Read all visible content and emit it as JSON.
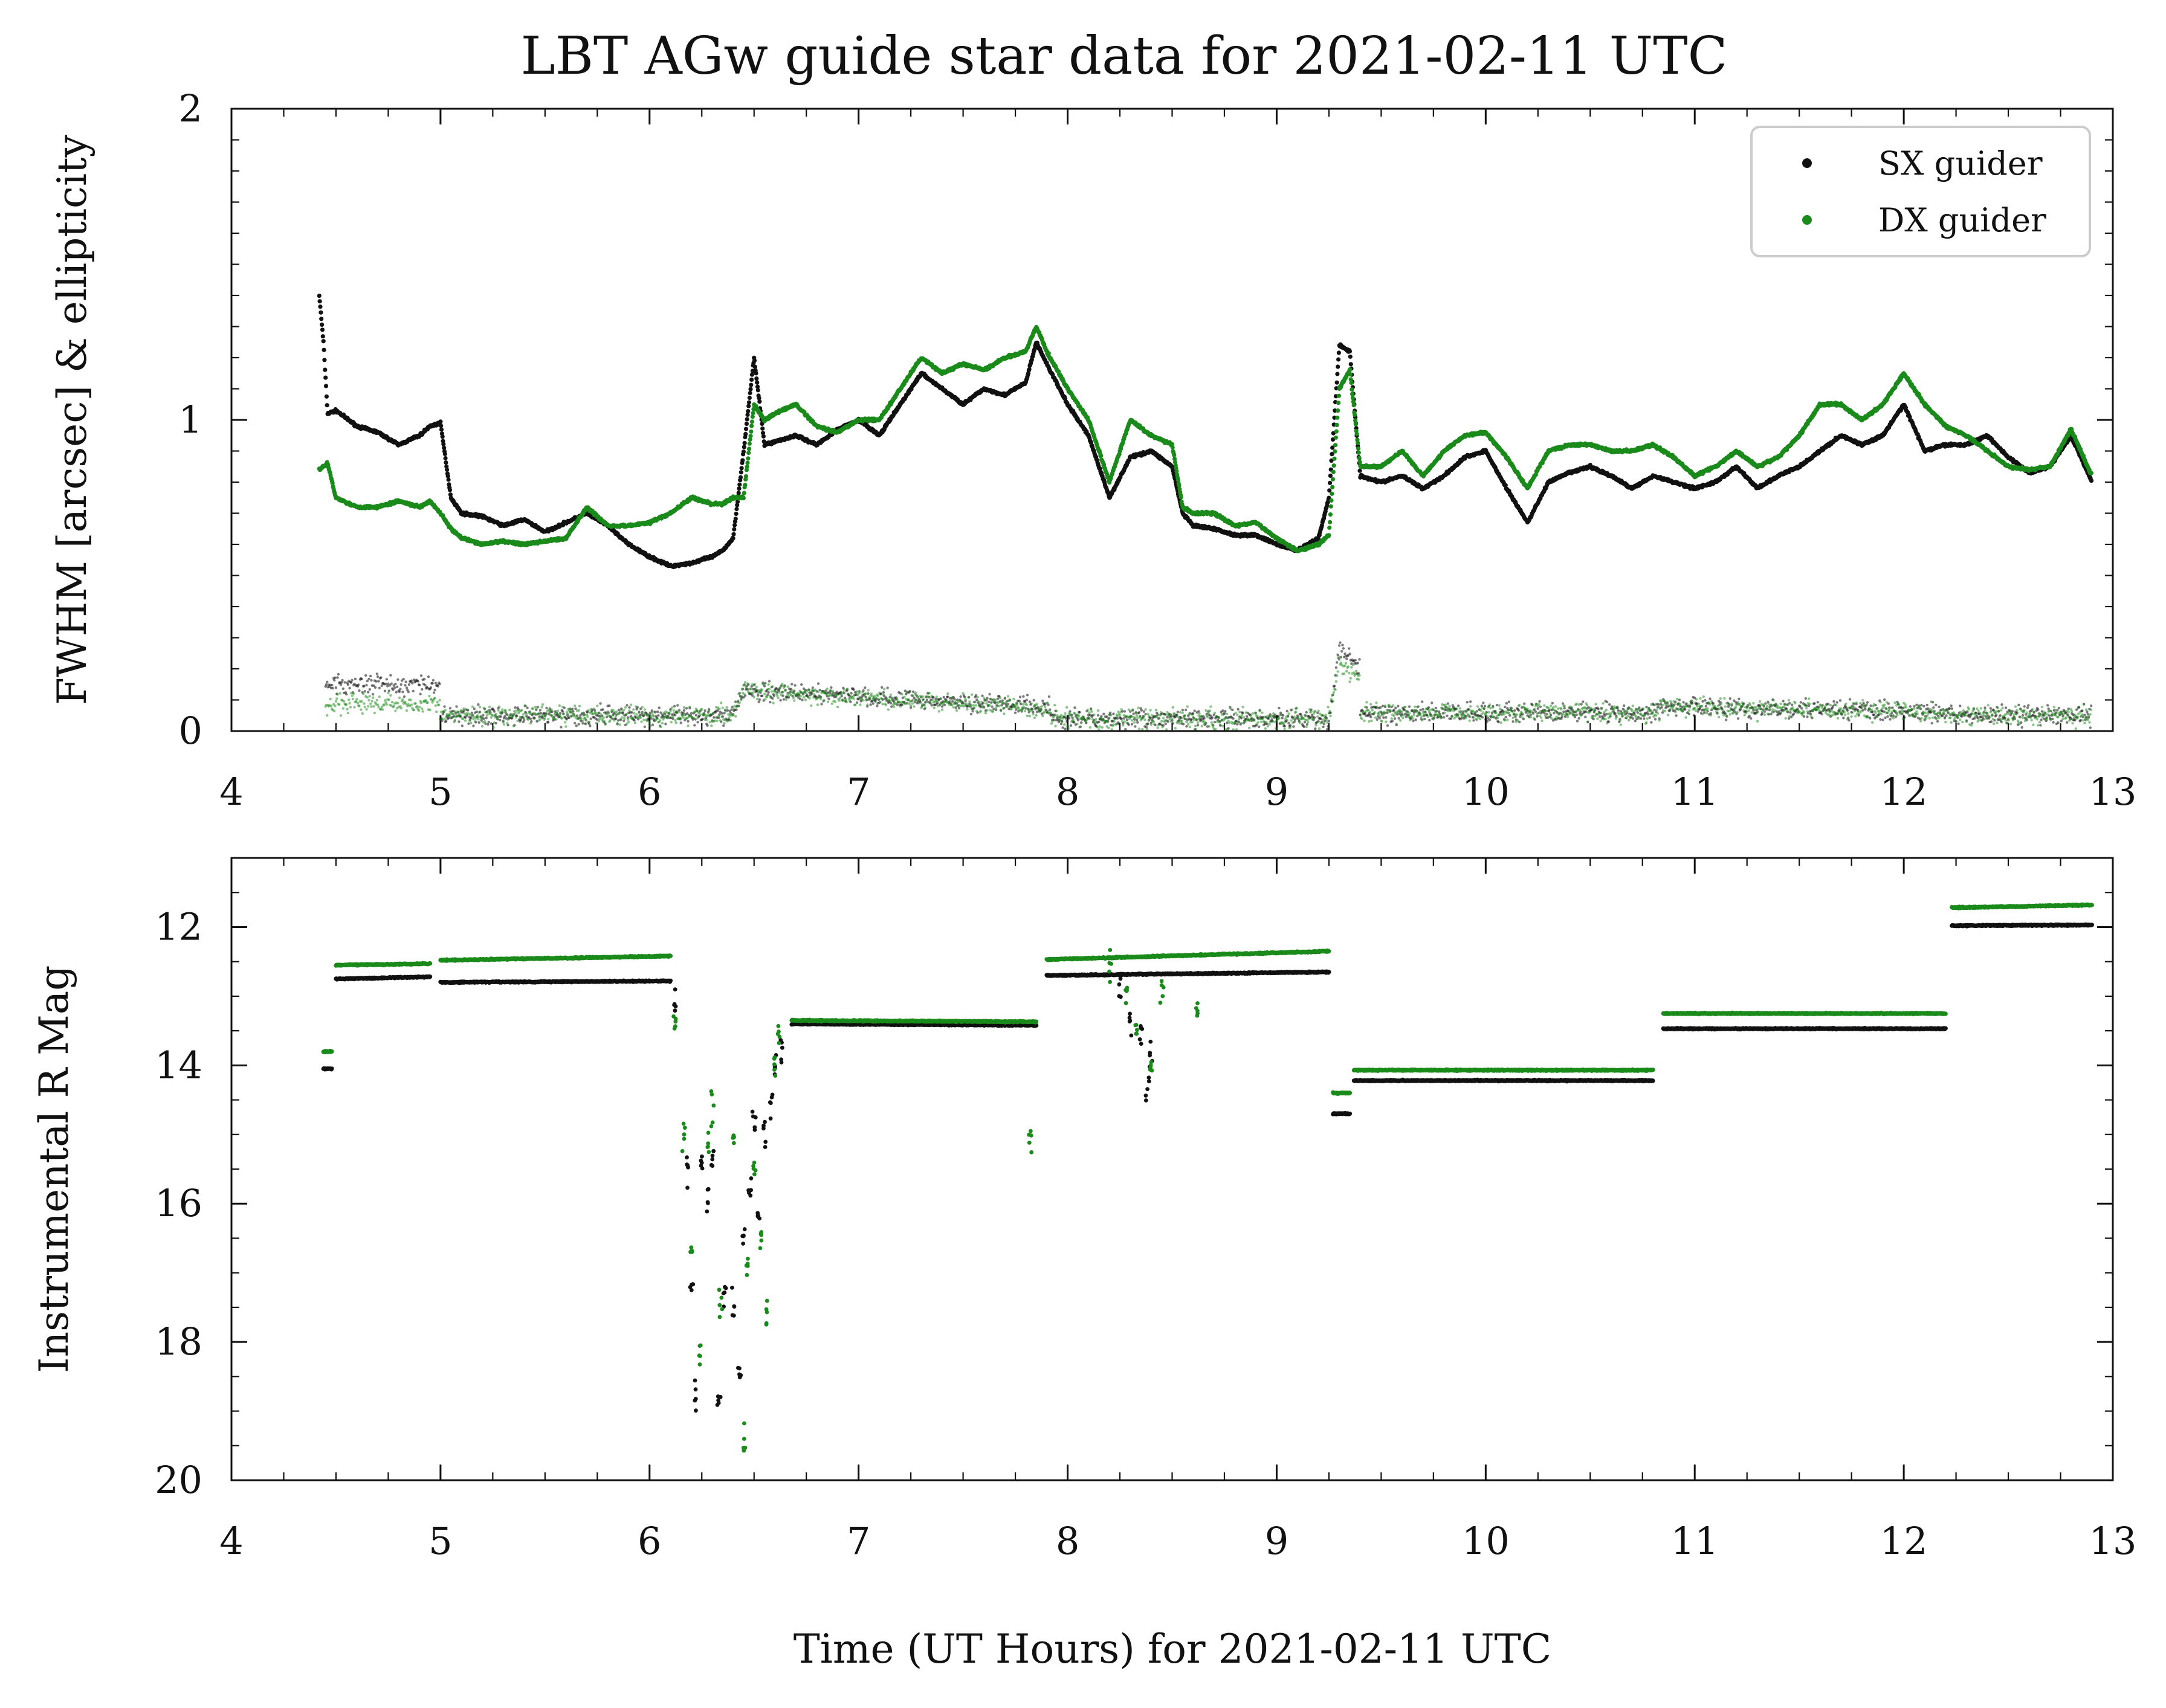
{
  "chart_data": [
    {
      "type": "scatter",
      "title": "LBT AGw guide star data for 2021-02-11 UTC",
      "ylabel": "FWHM [arcsec] & ellipticity",
      "xlabel": "",
      "xlim": [
        4,
        13
      ],
      "ylim": [
        0,
        2
      ],
      "x_ticks": [
        "4",
        "5",
        "6",
        "7",
        "8",
        "9",
        "10",
        "11",
        "12",
        "13"
      ],
      "y_ticks": [
        "0",
        "1",
        "2"
      ],
      "legend": {
        "placement": "top-right",
        "entries": [
          "SX guider",
          "DX guider"
        ]
      },
      "colors": {
        "sx": "#111111",
        "dx": "#1a8a1a"
      },
      "series": [
        {
          "name": "SX guider",
          "metric": "FWHM",
          "x": [
            4.42,
            4.44,
            4.46,
            4.5,
            4.6,
            4.7,
            4.8,
            4.9,
            4.95,
            5.0,
            5.05,
            5.1,
            5.2,
            5.3,
            5.4,
            5.5,
            5.6,
            5.7,
            5.8,
            5.9,
            6.0,
            6.1,
            6.2,
            6.3,
            6.35,
            6.4,
            6.45,
            6.5,
            6.55,
            6.6,
            6.7,
            6.8,
            6.9,
            7.0,
            7.1,
            7.2,
            7.3,
            7.4,
            7.5,
            7.6,
            7.7,
            7.8,
            7.85,
            7.9,
            8.0,
            8.1,
            8.2,
            8.3,
            8.4,
            8.5,
            8.55,
            8.6,
            8.7,
            8.8,
            8.9,
            9.0,
            9.1,
            9.2,
            9.25,
            9.3,
            9.35,
            9.4,
            9.5,
            9.6,
            9.7,
            9.8,
            9.9,
            10.0,
            10.1,
            10.2,
            10.3,
            10.4,
            10.5,
            10.6,
            10.7,
            10.8,
            10.9,
            11.0,
            11.1,
            11.2,
            11.3,
            11.4,
            11.5,
            11.6,
            11.7,
            11.8,
            11.9,
            12.0,
            12.1,
            12.2,
            12.3,
            12.4,
            12.5,
            12.6,
            12.7,
            12.8,
            12.9
          ],
          "y": [
            1.4,
            1.25,
            1.02,
            1.03,
            0.98,
            0.96,
            0.92,
            0.95,
            0.98,
            0.99,
            0.75,
            0.7,
            0.69,
            0.66,
            0.68,
            0.64,
            0.67,
            0.7,
            0.66,
            0.6,
            0.56,
            0.53,
            0.54,
            0.56,
            0.58,
            0.62,
            0.9,
            1.2,
            0.92,
            0.93,
            0.95,
            0.92,
            0.97,
            1.0,
            0.95,
            1.05,
            1.15,
            1.1,
            1.05,
            1.1,
            1.08,
            1.12,
            1.25,
            1.18,
            1.05,
            0.95,
            0.75,
            0.88,
            0.9,
            0.85,
            0.7,
            0.66,
            0.65,
            0.63,
            0.63,
            0.6,
            0.58,
            0.62,
            0.75,
            1.24,
            1.22,
            0.82,
            0.8,
            0.82,
            0.78,
            0.82,
            0.88,
            0.9,
            0.78,
            0.67,
            0.8,
            0.83,
            0.85,
            0.82,
            0.78,
            0.82,
            0.8,
            0.78,
            0.8,
            0.85,
            0.78,
            0.82,
            0.85,
            0.9,
            0.95,
            0.92,
            0.95,
            1.05,
            0.9,
            0.92,
            0.92,
            0.95,
            0.88,
            0.83,
            0.85,
            0.95,
            0.8
          ]
        },
        {
          "name": "DX guider",
          "metric": "FWHM",
          "x": [
            4.42,
            4.46,
            4.5,
            4.6,
            4.7,
            4.8,
            4.9,
            4.95,
            5.0,
            5.05,
            5.1,
            5.2,
            5.3,
            5.4,
            5.5,
            5.6,
            5.7,
            5.8,
            5.9,
            6.0,
            6.1,
            6.2,
            6.3,
            6.35,
            6.4,
            6.45,
            6.5,
            6.55,
            6.6,
            6.7,
            6.8,
            6.9,
            7.0,
            7.1,
            7.2,
            7.3,
            7.4,
            7.5,
            7.6,
            7.7,
            7.8,
            7.85,
            7.9,
            8.0,
            8.1,
            8.2,
            8.3,
            8.4,
            8.5,
            8.55,
            8.6,
            8.7,
            8.8,
            8.9,
            9.0,
            9.1,
            9.2,
            9.25,
            9.3,
            9.35,
            9.4,
            9.5,
            9.6,
            9.7,
            9.8,
            9.9,
            10.0,
            10.1,
            10.2,
            10.3,
            10.4,
            10.5,
            10.6,
            10.7,
            10.8,
            10.9,
            11.0,
            11.1,
            11.2,
            11.3,
            11.4,
            11.5,
            11.6,
            11.7,
            11.8,
            11.9,
            12.0,
            12.1,
            12.2,
            12.3,
            12.4,
            12.5,
            12.6,
            12.7,
            12.8,
            12.9
          ],
          "y": [
            0.84,
            0.86,
            0.75,
            0.72,
            0.72,
            0.74,
            0.72,
            0.74,
            0.7,
            0.65,
            0.62,
            0.6,
            0.61,
            0.6,
            0.61,
            0.62,
            0.72,
            0.66,
            0.66,
            0.67,
            0.7,
            0.75,
            0.73,
            0.73,
            0.75,
            0.75,
            1.05,
            1.0,
            1.02,
            1.05,
            0.98,
            0.96,
            1.0,
            1.0,
            1.1,
            1.2,
            1.15,
            1.18,
            1.16,
            1.2,
            1.22,
            1.3,
            1.22,
            1.1,
            1.0,
            0.8,
            1.0,
            0.95,
            0.92,
            0.72,
            0.7,
            0.7,
            0.66,
            0.67,
            0.62,
            0.58,
            0.6,
            0.63,
            1.1,
            1.16,
            0.85,
            0.85,
            0.9,
            0.82,
            0.9,
            0.95,
            0.96,
            0.88,
            0.78,
            0.9,
            0.92,
            0.92,
            0.9,
            0.9,
            0.92,
            0.88,
            0.82,
            0.85,
            0.9,
            0.85,
            0.88,
            0.95,
            1.05,
            1.05,
            1.0,
            1.05,
            1.15,
            1.05,
            0.98,
            0.95,
            0.9,
            0.85,
            0.84,
            0.85,
            0.97,
            0.82
          ]
        },
        {
          "name": "SX guider",
          "metric": "ellipticity",
          "x": [
            4.45,
            5.0,
            5.0,
            6.4,
            6.45,
            7.9,
            7.95,
            9.25,
            9.3,
            9.4,
            9.4,
            10.8,
            10.85,
            12.2,
            12.25,
            12.9
          ],
          "y": [
            0.15,
            0.15,
            0.05,
            0.05,
            0.13,
            0.08,
            0.04,
            0.04,
            0.26,
            0.2,
            0.06,
            0.06,
            0.08,
            0.06,
            0.05,
            0.05
          ]
        },
        {
          "name": "DX guider",
          "metric": "ellipticity",
          "x": [
            4.45,
            5.0,
            5.0,
            6.4,
            6.45,
            7.9,
            7.95,
            9.25,
            9.3,
            9.4,
            9.4,
            10.8,
            10.85,
            12.2,
            12.25,
            12.9
          ],
          "y": [
            0.09,
            0.09,
            0.05,
            0.05,
            0.13,
            0.07,
            0.04,
            0.04,
            0.22,
            0.18,
            0.06,
            0.06,
            0.08,
            0.06,
            0.05,
            0.05
          ]
        }
      ]
    },
    {
      "type": "scatter",
      "title": "",
      "ylabel": "Instrumental R Mag",
      "xlabel": "Time (UT Hours) for 2021-02-11 UTC",
      "xlim": [
        4,
        13
      ],
      "ylim": [
        20,
        11
      ],
      "y_inverted": true,
      "x_ticks": [
        "4",
        "5",
        "6",
        "7",
        "8",
        "9",
        "10",
        "11",
        "12",
        "13"
      ],
      "y_ticks": [
        "12",
        "14",
        "16",
        "18",
        "20"
      ],
      "series": [
        {
          "name": "SX guider",
          "segments": [
            {
              "x": [
                4.44,
                4.48
              ],
              "y": [
                14.05,
                14.05
              ]
            },
            {
              "x": [
                4.5,
                4.95
              ],
              "y": [
                12.75,
                12.72
              ]
            },
            {
              "x": [
                5.0,
                6.1
              ],
              "y": [
                12.8,
                12.78
              ]
            },
            {
              "x": [
                6.68,
                7.85
              ],
              "y": [
                13.4,
                13.42
              ]
            },
            {
              "x": [
                7.9,
                9.25
              ],
              "y": [
                12.7,
                12.65
              ]
            },
            {
              "x": [
                9.27,
                9.35
              ],
              "y": [
                14.7,
                14.7
              ]
            },
            {
              "x": [
                9.37,
                10.8
              ],
              "y": [
                14.22,
                14.22
              ]
            },
            {
              "x": [
                10.85,
                12.2
              ],
              "y": [
                13.47,
                13.47
              ]
            },
            {
              "x": [
                12.23,
                12.9
              ],
              "y": [
                11.98,
                11.97
              ]
            }
          ],
          "scatter": {
            "x": [
              6.12,
              6.18,
              6.2,
              6.22,
              6.25,
              6.28,
              6.3,
              6.33,
              6.36,
              6.4,
              6.43,
              6.45,
              6.48,
              6.5,
              6.52,
              6.55,
              6.58,
              6.6,
              6.63,
              8.25,
              8.3,
              8.35,
              8.38,
              8.4
            ],
            "y": [
              13.1,
              15.5,
              17.2,
              18.8,
              15.4,
              16.0,
              15.3,
              18.8,
              17.3,
              17.5,
              18.5,
              16.5,
              15.8,
              14.8,
              16.2,
              15.0,
              14.5,
              14.0,
              13.8,
              12.8,
              13.3,
              13.6,
              14.4,
              13.9
            ]
          }
        },
        {
          "name": "DX guider",
          "segments": [
            {
              "x": [
                4.44,
                4.48
              ],
              "y": [
                13.8,
                13.8
              ]
            },
            {
              "x": [
                4.5,
                4.95
              ],
              "y": [
                12.55,
                12.53
              ]
            },
            {
              "x": [
                5.0,
                6.1
              ],
              "y": [
                12.48,
                12.42
              ]
            },
            {
              "x": [
                6.68,
                7.85
              ],
              "y": [
                13.35,
                13.37
              ]
            },
            {
              "x": [
                7.9,
                9.25
              ],
              "y": [
                12.47,
                12.35
              ]
            },
            {
              "x": [
                9.27,
                9.35
              ],
              "y": [
                14.4,
                14.4
              ]
            },
            {
              "x": [
                9.37,
                10.8
              ],
              "y": [
                14.07,
                14.07
              ]
            },
            {
              "x": [
                10.85,
                12.2
              ],
              "y": [
                13.25,
                13.25
              ]
            },
            {
              "x": [
                12.23,
                12.9
              ],
              "y": [
                11.72,
                11.68
              ]
            }
          ],
          "scatter": {
            "x": [
              6.12,
              6.16,
              6.2,
              6.24,
              6.28,
              6.3,
              6.34,
              6.4,
              6.45,
              6.47,
              6.5,
              6.53,
              6.56,
              6.6,
              6.62,
              7.82,
              8.2,
              8.28,
              8.33,
              8.4,
              8.45,
              8.62
            ],
            "y": [
              13.5,
              15.0,
              16.8,
              18.2,
              15.2,
              14.7,
              17.5,
              15.0,
              19.5,
              17.0,
              15.5,
              16.5,
              17.5,
              14.0,
              13.6,
              15.1,
              12.6,
              13.0,
              13.5,
              14.0,
              12.9,
              13.1
            ]
          }
        }
      ]
    }
  ]
}
